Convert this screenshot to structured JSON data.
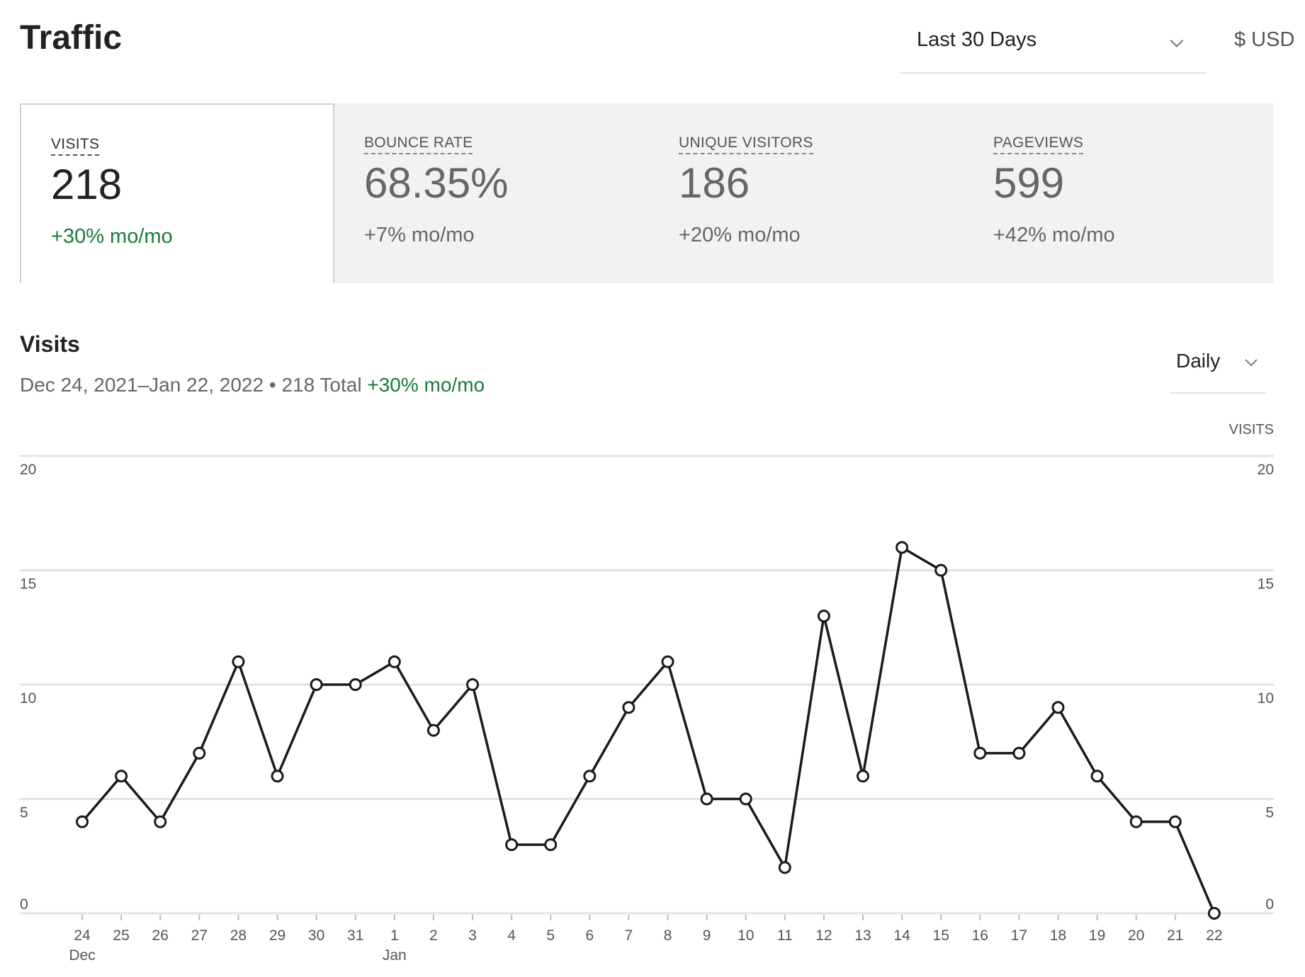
{
  "header": {
    "title": "Traffic",
    "range_label": "Last 30 Days",
    "currency_label": "$ USD"
  },
  "stats": [
    {
      "label": "VISITS",
      "value": "218",
      "change": "+30% mo/mo",
      "active": true
    },
    {
      "label": "BOUNCE RATE",
      "value": "68.35%",
      "change": "+7% mo/mo",
      "active": false
    },
    {
      "label": "UNIQUE VISITORS",
      "value": "186",
      "change": "+20% mo/mo",
      "active": false
    },
    {
      "label": "PAGEVIEWS",
      "value": "599",
      "change": "+42% mo/mo",
      "active": false
    }
  ],
  "visits_panel": {
    "title": "Visits",
    "date_range": "Dec 24, 2021–Jan 22, 2022",
    "separator": "•",
    "total": "218 Total",
    "change": "+30% mo/mo",
    "interval_label": "Daily",
    "axis_title": "VISITS"
  },
  "colors": {
    "accent_green": "#1b7a3a",
    "line": "#1a1a1a",
    "grid": "#e2e2e2"
  },
  "chart_data": {
    "type": "line",
    "x": [
      "24",
      "25",
      "26",
      "27",
      "28",
      "29",
      "30",
      "31",
      "1",
      "2",
      "3",
      "4",
      "5",
      "6",
      "7",
      "8",
      "9",
      "10",
      "11",
      "12",
      "13",
      "14",
      "15",
      "16",
      "17",
      "18",
      "19",
      "20",
      "21",
      "22"
    ],
    "month_labels": [
      {
        "index": 0,
        "label": "Dec"
      },
      {
        "index": 8,
        "label": "Jan"
      }
    ],
    "series": [
      {
        "values": [
          4,
          6,
          4,
          7,
          11,
          6,
          10,
          10,
          11,
          8,
          10,
          3,
          3,
          6,
          9,
          11,
          5,
          5,
          2,
          13,
          6,
          16,
          15,
          7,
          7,
          9,
          6,
          4,
          4,
          0
        ]
      }
    ],
    "ylim": [
      0,
      20
    ],
    "yticks": [
      0,
      5,
      10,
      15,
      20
    ],
    "ylabel": "VISITS",
    "grid": true,
    "dual_y_axis": true
  }
}
